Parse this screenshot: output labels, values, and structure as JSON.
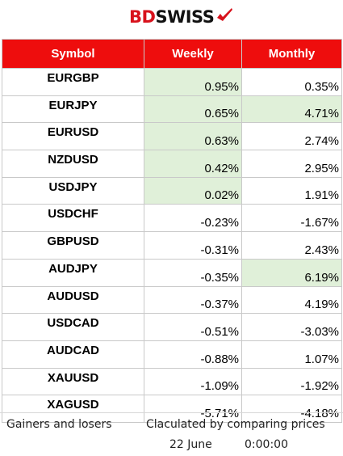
{
  "brand": {
    "part1": "BD",
    "part2": "SWISS"
  },
  "table": {
    "headers": {
      "symbol": "Symbol",
      "weekly": "Weekly",
      "monthly": "Monthly"
    },
    "rows": [
      {
        "symbol": "EURGBP",
        "weekly": "0.95%",
        "monthly": "0.35%",
        "weekly_positive": true,
        "monthly_positive": false
      },
      {
        "symbol": "EURJPY",
        "weekly": "0.65%",
        "monthly": "4.71%",
        "weekly_positive": true,
        "monthly_positive": true
      },
      {
        "symbol": "EURUSD",
        "weekly": "0.63%",
        "monthly": "2.74%",
        "weekly_positive": true,
        "monthly_positive": false
      },
      {
        "symbol": "NZDUSD",
        "weekly": "0.42%",
        "monthly": "2.95%",
        "weekly_positive": true,
        "monthly_positive": false
      },
      {
        "symbol": "USDJPY",
        "weekly": "0.02%",
        "monthly": "1.91%",
        "weekly_positive": true,
        "monthly_positive": false
      },
      {
        "symbol": "USDCHF",
        "weekly": "-0.23%",
        "monthly": "-1.67%",
        "weekly_positive": false,
        "monthly_positive": false
      },
      {
        "symbol": "GBPUSD",
        "weekly": "-0.31%",
        "monthly": "2.43%",
        "weekly_positive": false,
        "monthly_positive": false
      },
      {
        "symbol": "AUDJPY",
        "weekly": "-0.35%",
        "monthly": "6.19%",
        "weekly_positive": false,
        "monthly_positive": true
      },
      {
        "symbol": "AUDUSD",
        "weekly": "-0.37%",
        "monthly": "4.19%",
        "weekly_positive": false,
        "monthly_positive": false
      },
      {
        "symbol": "USDCAD",
        "weekly": "-0.51%",
        "monthly": "-3.03%",
        "weekly_positive": false,
        "monthly_positive": false
      },
      {
        "symbol": "AUDCAD",
        "weekly": "-0.88%",
        "monthly": "1.07%",
        "weekly_positive": false,
        "monthly_positive": false
      },
      {
        "symbol": "XAUUSD",
        "weekly": "-1.09%",
        "monthly": "-1.92%",
        "weekly_positive": false,
        "monthly_positive": false
      },
      {
        "symbol": "XAGUSD",
        "weekly": "-5.71%",
        "monthly": "-4.18%",
        "weekly_positive": false,
        "monthly_positive": false
      }
    ]
  },
  "footer": {
    "left_note": "Gainers and losers",
    "right_note": "Claculated by comparing prices",
    "date": "22 June",
    "time": "0:00:00"
  },
  "colors": {
    "header_bg": "#ee0d0d",
    "highlight_bg": "#e0f0d9",
    "brand_red": "#d8121c"
  },
  "icons": {
    "logo_mark": "red-check-flag-icon"
  }
}
